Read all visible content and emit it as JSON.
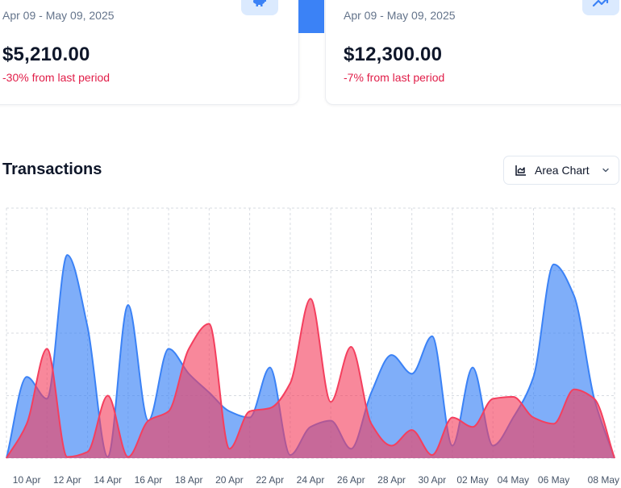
{
  "cards": [
    {
      "range": "Apr 09 - May 09, 2025",
      "amount": "$5,210.00",
      "change": "-30% from last period",
      "icon": "piggy-bank-icon"
    },
    {
      "range": "Apr 09 - May 09, 2025",
      "amount": "$12,300.00",
      "change": "-7% from last period",
      "icon": "trending-up-icon"
    }
  ],
  "section": {
    "title": "Transactions"
  },
  "chart_type_button": {
    "label": "Area Chart",
    "icon": "area-chart-icon",
    "dropdown_icon": "chevron-down-icon"
  },
  "colors": {
    "series_a": "#3b82f6",
    "series_b": "#f43f5e",
    "negative": "#e11d48",
    "accent_bg": "#dbeafe"
  },
  "chart_data": {
    "type": "area",
    "title": "",
    "xlabel": "",
    "ylabel": "",
    "grid": true,
    "legend": "none",
    "y_range": [
      0,
      4
    ],
    "x_ticks": [
      "10 Apr",
      "12 Apr",
      "14 Apr",
      "16 Apr",
      "18 Apr",
      "20 Apr",
      "22 Apr",
      "24 Apr",
      "26 Apr",
      "28 Apr",
      "30 Apr",
      "02 May",
      "04 May",
      "06 May",
      "08 May"
    ],
    "x": [
      "09 Apr",
      "10 Apr",
      "11 Apr",
      "12 Apr",
      "13 Apr",
      "14 Apr",
      "15 Apr",
      "16 Apr",
      "17 Apr",
      "18 Apr",
      "19 Apr",
      "20 Apr",
      "21 Apr",
      "22 Apr",
      "23 Apr",
      "24 Apr",
      "25 Apr",
      "26 Apr",
      "27 Apr",
      "28 Apr",
      "29 Apr",
      "30 Apr",
      "01 May",
      "02 May",
      "03 May",
      "04 May",
      "05 May",
      "06 May",
      "07 May",
      "08 May",
      "09 May"
    ],
    "series": [
      {
        "values": [
          0,
          1.3,
          0.95,
          3.25,
          2.1,
          0.02,
          2.45,
          0.6,
          1.75,
          1.35,
          1.05,
          0.75,
          0.65,
          1.45,
          0.05,
          0.5,
          0.6,
          0.15,
          1.05,
          1.65,
          1.35,
          1.95,
          0.2,
          1.45,
          0.2,
          0.65,
          1.3,
          3.1,
          2.6,
          0.95,
          0
        ]
      },
      {
        "values": [
          0,
          0.55,
          1.75,
          0.02,
          0.1,
          1.0,
          0.02,
          0.6,
          0.75,
          1.75,
          2.15,
          0.15,
          0.75,
          0.8,
          1.2,
          2.55,
          0.9,
          1.78,
          0.55,
          0.2,
          0.45,
          0.05,
          0.65,
          0.5,
          0.95,
          0.98,
          0.65,
          0.55,
          1.1,
          0.95,
          0
        ]
      }
    ]
  }
}
